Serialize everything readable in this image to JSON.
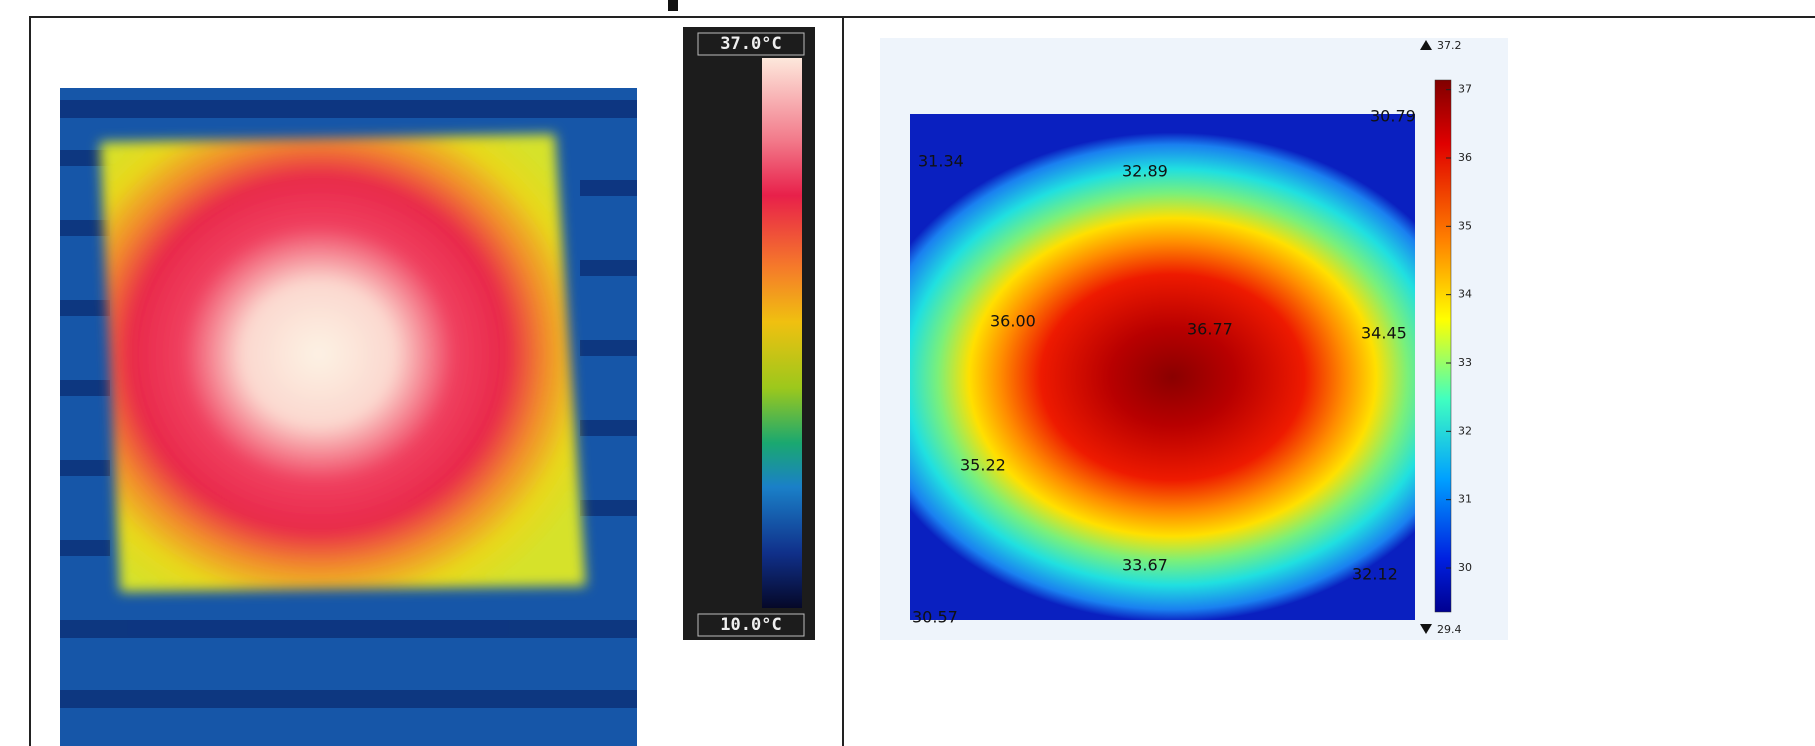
{
  "left_panel": {
    "max_label": "37.0°C",
    "min_label": "10.0°C"
  },
  "right_panel": {
    "max": 37.2,
    "min": 29.4,
    "colorbar_ticks": [
      37,
      36,
      35,
      34,
      33,
      32,
      31,
      30
    ],
    "contour_labels": [
      "30.79",
      "31.34",
      "32.89",
      "36.00",
      "36.77",
      "34.45",
      "35.22",
      "33.67",
      "32.12",
      "30.57"
    ]
  }
}
